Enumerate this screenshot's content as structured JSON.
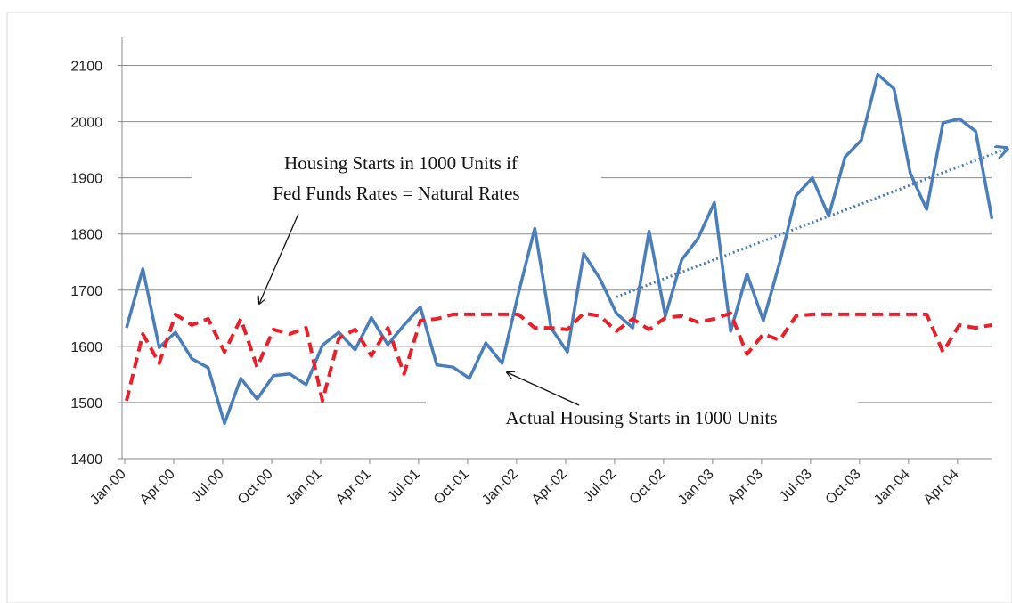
{
  "chart_data": {
    "type": "line",
    "categories": [
      "Jan-00",
      null,
      null,
      "Apr-00",
      null,
      null,
      "Jul-00",
      null,
      null,
      "Oct-00",
      null,
      null,
      "Jan-01",
      null,
      null,
      "Apr-01",
      null,
      null,
      "Jul-01",
      null,
      null,
      "Oct-01",
      null,
      null,
      "Jan-02",
      null,
      null,
      "Apr-02",
      null,
      null,
      "Jul-02",
      null,
      null,
      "Oct-02",
      null,
      null,
      "Jan-03",
      null,
      null,
      "Apr-03",
      null,
      null,
      "Jul-03",
      null,
      null,
      "Oct-03",
      null,
      null,
      "Jan-04",
      null,
      null,
      "Apr-04",
      null,
      null
    ],
    "series": [
      {
        "color": "#4a7ebb",
        "dash": false,
        "values": [
          1633,
          1738,
          1598,
          1625,
          1578,
          1562,
          1463,
          1543,
          1506,
          1548,
          1551,
          1532,
          1602,
          1625,
          1594,
          1651,
          1603,
          1638,
          1670,
          1567,
          1563,
          1543,
          1606,
          1570,
          1694,
          1810,
          1633,
          1590,
          1765,
          1720,
          1659,
          1633,
          1805,
          1654,
          1754,
          1792,
          1856,
          1627,
          1729,
          1646,
          1749,
          1868,
          1900,
          1832,
          1937,
          1967,
          2084,
          2059,
          1908,
          1844,
          1998,
          2005,
          1983,
          1827
        ]
      },
      {
        "color": "#e8202a",
        "dash": true,
        "values": [
          1503,
          1622,
          1570,
          1657,
          1638,
          1649,
          1590,
          1649,
          1563,
          1630,
          1622,
          1633,
          1503,
          1614,
          1630,
          1583,
          1633,
          1551,
          1646,
          1649,
          1657,
          1657,
          1657,
          1657,
          1657,
          1633,
          1633,
          1630,
          1659,
          1654,
          1627,
          1649,
          1630,
          1651,
          1654,
          1643,
          1649,
          1659,
          1586,
          1622,
          1611,
          1654,
          1657,
          1657,
          1657,
          1657,
          1657,
          1657,
          1657,
          1657,
          1590,
          1638,
          1633,
          1638
        ]
      }
    ],
    "trend": {
      "color": "#4a7ebb",
      "from": [
        30,
        1688
      ],
      "to": [
        53.8,
        1951
      ]
    },
    "ylim": [
      1400,
      2150
    ],
    "yticks": [
      1400,
      1500,
      1600,
      1700,
      1800,
      1900,
      2000,
      2100
    ],
    "grid": true,
    "annotations": [
      {
        "lines": [
          "Housing  Starts  in  1000 Units  if",
          "Fed Funds  Rates  =  Natural  Rates"
        ]
      },
      {
        "lines": [
          "Actual  Housing  Starts  in  1000 Units"
        ]
      }
    ]
  }
}
